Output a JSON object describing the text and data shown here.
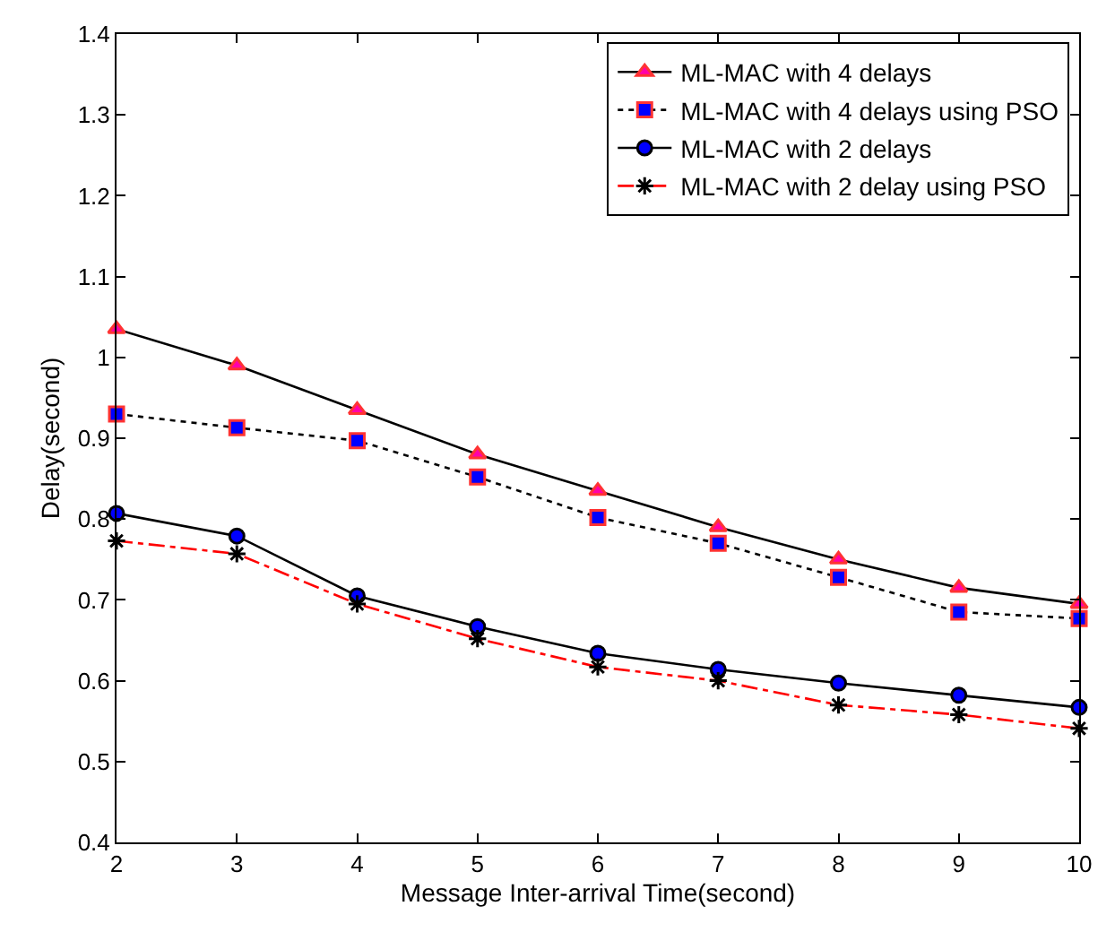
{
  "chart_data": {
    "type": "line",
    "xlabel": "Message Inter-arrival Time(second)",
    "ylabel": "Delay(second)",
    "x": [
      2,
      3,
      4,
      5,
      6,
      7,
      8,
      9,
      10
    ],
    "xlim": [
      2,
      10
    ],
    "xticks": [
      2,
      3,
      4,
      5,
      6,
      7,
      8,
      9,
      10
    ],
    "ylim": [
      0.4,
      1.4
    ],
    "yticks": [
      {
        "value": 0.4,
        "label": "0.4"
      },
      {
        "value": 0.5,
        "label": "0.5"
      },
      {
        "value": 0.6,
        "label": "0.6"
      },
      {
        "value": 0.7,
        "label": "0.7"
      },
      {
        "value": 0.8,
        "label": "0.8"
      },
      {
        "value": 0.9,
        "label": "0.9"
      },
      1,
      {
        "value": 1.1,
        "label": "1.1"
      },
      {
        "value": 1.2,
        "label": "1.2"
      },
      {
        "value": 1.3,
        "label": "1.3"
      },
      {
        "value": 1.4,
        "label": "1.4"
      }
    ],
    "legend": "top right",
    "series": [
      {
        "name": "ML-MAC with 4 delays",
        "color": "#000000",
        "marker": "triangle",
        "colors": [
          "#ff00aa",
          "#ff00aa",
          "#ff00aa",
          "#ff00aa",
          "#ff00aa",
          "#ff00aa",
          "#ff00aa",
          "#ff00aa",
          "#ff00aa"
        ],
        "line_style": "solid",
        "values": [
          1.035,
          0.99,
          0.935,
          0.88,
          0.835,
          0.79,
          0.75,
          0.715,
          0.695
        ]
      },
      {
        "name": "ML-MAC with 4 delays using PSO",
        "color": "#000000",
        "marker": "square",
        "colors": [
          "#0000ff",
          "#0000ff",
          "#0000ff",
          "#0000ff",
          "#0000ff",
          "#0000ff",
          "#0000ff",
          "#0000ff",
          "#0000ff"
        ],
        "line_style": "dotted",
        "values": [
          0.93,
          0.913,
          0.897,
          0.852,
          0.802,
          0.77,
          0.728,
          0.685,
          0.677
        ]
      },
      {
        "name": "ML-MAC with 2 delays",
        "color": "#000000",
        "marker": "circle",
        "colors": [
          "#0000ff",
          "#0000ff",
          "#0000ff",
          "#0000ff",
          "#0000ff",
          "#0000ff",
          "#0000ff",
          "#0000ff",
          "#0000ff"
        ],
        "line_style": "solid",
        "values": [
          0.807,
          0.779,
          0.705,
          0.667,
          0.634,
          0.614,
          0.597,
          0.582,
          0.567
        ]
      },
      {
        "name": "ML-MAC with 2 delay using PSO",
        "color": "#ff0000",
        "marker": "cross",
        "colors": [
          "#000000",
          "#000000",
          "#000000",
          "#000000",
          "#000000",
          "#000000",
          "#000000",
          "#000000",
          "#000000"
        ],
        "line_style": "dashed",
        "values": [
          0.773,
          0.757,
          0.695,
          0.652,
          0.617,
          0.6,
          0.57,
          0.558,
          0.541
        ]
      }
    ]
  }
}
